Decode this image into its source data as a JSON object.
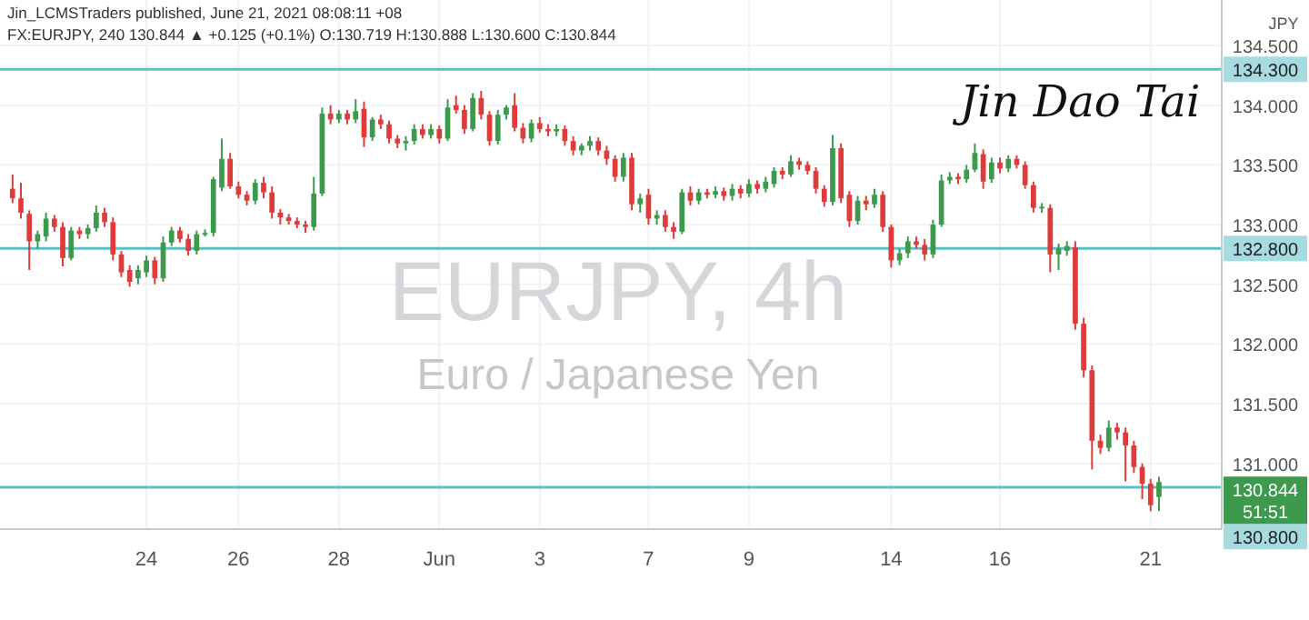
{
  "chart_data": {
    "type": "candlestick",
    "title": "EURJPY, 4h",
    "subtitle": "Euro / Japanese Yen",
    "ylabel": "JPY",
    "annotations": [
      "Jin_LCMSTraders published, June 21, 2021 08:08:11 +08",
      "FX:EURJPY, 240  130.844 ▲ +0.125 (+0.1%)  O:130.719  H:130.888  L:130.600  C:130.844",
      "Jin Dao Tai",
      "130.844",
      "51:51"
    ],
    "categories": [
      null,
      null,
      null,
      null,
      null,
      null,
      null,
      null,
      null,
      null,
      null,
      null,
      null,
      null,
      null,
      null,
      "24",
      null,
      null,
      null,
      null,
      null,
      null,
      null,
      null,
      null,
      null,
      "26",
      null,
      null,
      null,
      null,
      null,
      null,
      null,
      null,
      null,
      null,
      null,
      "28",
      null,
      null,
      null,
      null,
      null,
      null,
      null,
      null,
      null,
      null,
      null,
      "Jun",
      null,
      null,
      null,
      null,
      null,
      null,
      null,
      null,
      null,
      null,
      null,
      "3",
      null,
      null,
      null,
      null,
      null,
      null,
      null,
      null,
      null,
      null,
      null,
      null,
      "7",
      null,
      null,
      null,
      null,
      null,
      null,
      null,
      null,
      null,
      null,
      null,
      "9",
      null,
      null,
      null,
      null,
      null,
      null,
      null,
      null,
      null,
      null,
      null,
      null,
      null,
      null,
      null,
      null,
      "14",
      null,
      null,
      null,
      null,
      null,
      null,
      null,
      null,
      null,
      null,
      null,
      null,
      "16",
      null,
      null,
      null,
      null,
      null,
      null,
      null,
      null,
      null,
      null,
      null,
      null,
      null,
      null,
      null,
      null,
      null,
      "21",
      null
    ],
    "ohlc": [
      [
        133.3,
        133.42,
        133.18,
        133.22
      ],
      [
        133.22,
        133.35,
        133.05,
        133.1
      ],
      [
        133.09,
        133.12,
        132.62,
        132.86
      ],
      [
        132.86,
        132.95,
        132.8,
        132.92
      ],
      [
        132.9,
        133.1,
        132.86,
        133.05
      ],
      [
        133.05,
        133.08,
        132.94,
        132.98
      ],
      [
        132.98,
        133.02,
        132.65,
        132.72
      ],
      [
        132.72,
        132.98,
        132.7,
        132.95
      ],
      [
        132.95,
        132.98,
        132.88,
        132.92
      ],
      [
        132.92,
        133.0,
        132.88,
        132.97
      ],
      [
        132.97,
        133.16,
        132.94,
        133.1
      ],
      [
        133.1,
        133.14,
        132.98,
        133.02
      ],
      [
        133.02,
        133.06,
        132.7,
        132.75
      ],
      [
        132.75,
        132.78,
        132.56,
        132.6
      ],
      [
        132.62,
        132.66,
        132.48,
        132.52
      ],
      [
        132.55,
        132.66,
        132.5,
        132.62
      ],
      [
        132.6,
        132.74,
        132.56,
        132.7
      ],
      [
        132.7,
        132.73,
        132.5,
        132.55
      ],
      [
        132.55,
        132.9,
        132.52,
        132.85
      ],
      [
        132.85,
        132.98,
        132.82,
        132.95
      ],
      [
        132.95,
        132.98,
        132.85,
        132.88
      ],
      [
        132.88,
        132.92,
        132.74,
        132.78
      ],
      [
        132.78,
        132.95,
        132.75,
        132.92
      ],
      [
        132.92,
        132.96,
        132.9,
        132.93
      ],
      [
        132.93,
        133.4,
        132.9,
        133.38
      ],
      [
        133.31,
        133.72,
        133.28,
        133.55
      ],
      [
        133.55,
        133.6,
        133.3,
        133.32
      ],
      [
        133.32,
        133.36,
        133.22,
        133.25
      ],
      [
        133.25,
        133.28,
        133.16,
        133.2
      ],
      [
        133.2,
        133.38,
        133.17,
        133.35
      ],
      [
        133.35,
        133.4,
        133.22,
        133.27
      ],
      [
        133.27,
        133.32,
        133.05,
        133.1
      ],
      [
        133.1,
        133.13,
        133.0,
        133.06
      ],
      [
        133.06,
        133.09,
        133.0,
        133.03
      ],
      [
        133.03,
        133.06,
        132.97,
        133.0
      ],
      [
        133.0,
        133.03,
        132.93,
        132.98
      ],
      [
        132.98,
        133.4,
        132.95,
        133.26
      ],
      [
        133.26,
        133.98,
        133.24,
        133.93
      ],
      [
        133.93,
        134.0,
        133.84,
        133.88
      ],
      [
        133.88,
        133.96,
        133.85,
        133.93
      ],
      [
        133.93,
        133.96,
        133.84,
        133.88
      ],
      [
        133.88,
        134.05,
        133.85,
        133.95
      ],
      [
        133.97,
        134.03,
        133.65,
        133.73
      ],
      [
        133.73,
        133.9,
        133.7,
        133.88
      ],
      [
        133.88,
        133.92,
        133.8,
        133.84
      ],
      [
        133.84,
        133.87,
        133.68,
        133.72
      ],
      [
        133.72,
        133.75,
        133.64,
        133.68
      ],
      [
        133.68,
        133.74,
        133.62,
        133.7
      ],
      [
        133.7,
        133.84,
        133.67,
        133.8
      ],
      [
        133.8,
        133.84,
        133.72,
        133.75
      ],
      [
        133.75,
        133.84,
        133.72,
        133.8
      ],
      [
        133.8,
        133.83,
        133.68,
        133.72
      ],
      [
        133.72,
        134.05,
        133.7,
        133.98
      ],
      [
        134.0,
        134.08,
        133.93,
        133.96
      ],
      [
        133.96,
        134.0,
        133.76,
        133.8
      ],
      [
        133.8,
        134.1,
        133.78,
        134.06
      ],
      [
        134.06,
        134.12,
        133.88,
        133.92
      ],
      [
        133.92,
        133.95,
        133.66,
        133.7
      ],
      [
        133.7,
        133.96,
        133.67,
        133.92
      ],
      [
        133.92,
        134.0,
        133.88,
        133.98
      ],
      [
        134.0,
        134.1,
        133.78,
        133.81
      ],
      [
        133.81,
        133.85,
        133.68,
        133.72
      ],
      [
        133.72,
        133.88,
        133.69,
        133.85
      ],
      [
        133.85,
        133.9,
        133.77,
        133.8
      ],
      [
        133.8,
        133.84,
        133.74,
        133.78
      ],
      [
        133.78,
        133.84,
        133.74,
        133.8
      ],
      [
        133.8,
        133.83,
        133.66,
        133.7
      ],
      [
        133.7,
        133.74,
        133.58,
        133.62
      ],
      [
        133.62,
        133.68,
        133.58,
        133.66
      ],
      [
        133.66,
        133.74,
        133.62,
        133.7
      ],
      [
        133.7,
        133.73,
        133.58,
        133.62
      ],
      [
        133.62,
        133.66,
        133.5,
        133.55
      ],
      [
        133.55,
        133.58,
        133.36,
        133.4
      ],
      [
        133.4,
        133.6,
        133.36,
        133.56
      ],
      [
        133.56,
        133.6,
        133.12,
        133.17
      ],
      [
        133.17,
        133.26,
        133.1,
        133.22
      ],
      [
        133.25,
        133.3,
        133.0,
        133.05
      ],
      [
        133.05,
        133.12,
        133.0,
        133.08
      ],
      [
        133.08,
        133.12,
        132.94,
        132.98
      ],
      [
        132.98,
        133.02,
        132.88,
        132.94
      ],
      [
        132.94,
        133.3,
        132.92,
        133.27
      ],
      [
        133.27,
        133.32,
        133.16,
        133.2
      ],
      [
        133.2,
        133.3,
        133.17,
        133.27
      ],
      [
        133.27,
        133.3,
        133.22,
        133.25
      ],
      [
        133.25,
        133.32,
        133.22,
        133.28
      ],
      [
        133.28,
        133.31,
        133.2,
        133.24
      ],
      [
        133.24,
        133.34,
        133.2,
        133.3
      ],
      [
        133.3,
        133.33,
        133.22,
        133.26
      ],
      [
        133.26,
        133.38,
        133.23,
        133.34
      ],
      [
        133.34,
        133.37,
        133.26,
        133.3
      ],
      [
        133.3,
        133.4,
        133.27,
        133.36
      ],
      [
        133.34,
        133.48,
        133.31,
        133.45
      ],
      [
        133.45,
        133.48,
        133.38,
        133.42
      ],
      [
        133.42,
        133.58,
        133.4,
        133.53
      ],
      [
        133.53,
        133.56,
        133.46,
        133.5
      ],
      [
        133.5,
        133.53,
        133.42,
        133.45
      ],
      [
        133.45,
        133.48,
        133.26,
        133.3
      ],
      [
        133.3,
        133.33,
        133.15,
        133.19
      ],
      [
        133.19,
        133.75,
        133.16,
        133.64
      ],
      [
        133.64,
        133.68,
        133.18,
        133.22
      ],
      [
        133.25,
        133.28,
        132.98,
        133.03
      ],
      [
        133.03,
        133.24,
        133.0,
        133.2
      ],
      [
        133.2,
        133.24,
        133.12,
        133.17
      ],
      [
        133.17,
        133.3,
        133.14,
        133.25
      ],
      [
        133.25,
        133.28,
        132.94,
        132.98
      ],
      [
        132.98,
        133.0,
        132.64,
        132.7
      ],
      [
        132.7,
        132.8,
        132.66,
        132.76
      ],
      [
        132.76,
        132.9,
        132.72,
        132.86
      ],
      [
        132.86,
        132.9,
        132.8,
        132.83
      ],
      [
        132.83,
        132.88,
        132.7,
        132.75
      ],
      [
        132.75,
        133.04,
        132.72,
        133.0
      ],
      [
        133.0,
        133.42,
        132.98,
        133.37
      ],
      [
        133.37,
        133.44,
        133.34,
        133.4
      ],
      [
        133.4,
        133.43,
        133.34,
        133.38
      ],
      [
        133.38,
        133.5,
        133.35,
        133.46
      ],
      [
        133.46,
        133.68,
        133.44,
        133.6
      ],
      [
        133.59,
        133.63,
        133.3,
        133.36
      ],
      [
        133.38,
        133.56,
        133.35,
        133.52
      ],
      [
        133.52,
        133.56,
        133.43,
        133.47
      ],
      [
        133.47,
        133.58,
        133.44,
        133.55
      ],
      [
        133.55,
        133.58,
        133.47,
        133.5
      ],
      [
        133.5,
        133.53,
        133.3,
        133.33
      ],
      [
        133.33,
        133.36,
        133.1,
        133.14
      ],
      [
        133.14,
        133.18,
        133.1,
        133.15
      ],
      [
        133.14,
        133.17,
        132.6,
        132.75
      ],
      [
        132.75,
        132.84,
        132.62,
        132.8
      ],
      [
        132.78,
        132.86,
        132.74,
        132.82
      ],
      [
        132.81,
        132.86,
        132.12,
        132.17
      ],
      [
        132.17,
        132.22,
        131.72,
        131.78
      ],
      [
        131.78,
        131.82,
        130.95,
        131.19
      ],
      [
        131.19,
        131.24,
        131.08,
        131.13
      ],
      [
        131.13,
        131.36,
        131.1,
        131.3
      ],
      [
        131.3,
        131.34,
        131.2,
        131.26
      ],
      [
        131.26,
        131.3,
        130.85,
        131.15
      ],
      [
        131.15,
        131.19,
        130.92,
        130.97
      ],
      [
        130.97,
        131.0,
        130.7,
        130.83
      ],
      [
        130.83,
        130.87,
        130.6,
        130.65
      ],
      [
        130.719,
        130.888,
        130.6,
        130.844
      ]
    ],
    "ylim": [
      130.45,
      134.5
    ],
    "yticks": [
      {
        "value": 131,
        "label": "131.000"
      },
      {
        "value": 131.5,
        "label": "131.500"
      },
      {
        "value": 132,
        "label": "132.000"
      },
      {
        "value": 132.5,
        "label": "132.500"
      },
      {
        "value": 133,
        "label": "133.000"
      },
      {
        "value": 133.5,
        "label": "133.500"
      },
      {
        "value": 134,
        "label": "134.000"
      },
      {
        "value": 134.5,
        "label": "134.500"
      }
    ],
    "ref_lines": [
      {
        "axis": "y",
        "value": 134.3,
        "label": "134.300",
        "color": "#5dbfc7"
      },
      {
        "axis": "y",
        "value": 132.8,
        "label": "132.800",
        "color": "#5dbfc7"
      },
      {
        "axis": "y",
        "value": 130.8,
        "label": "130.800",
        "color": "#5dbfc7"
      }
    ],
    "grid": true
  }
}
